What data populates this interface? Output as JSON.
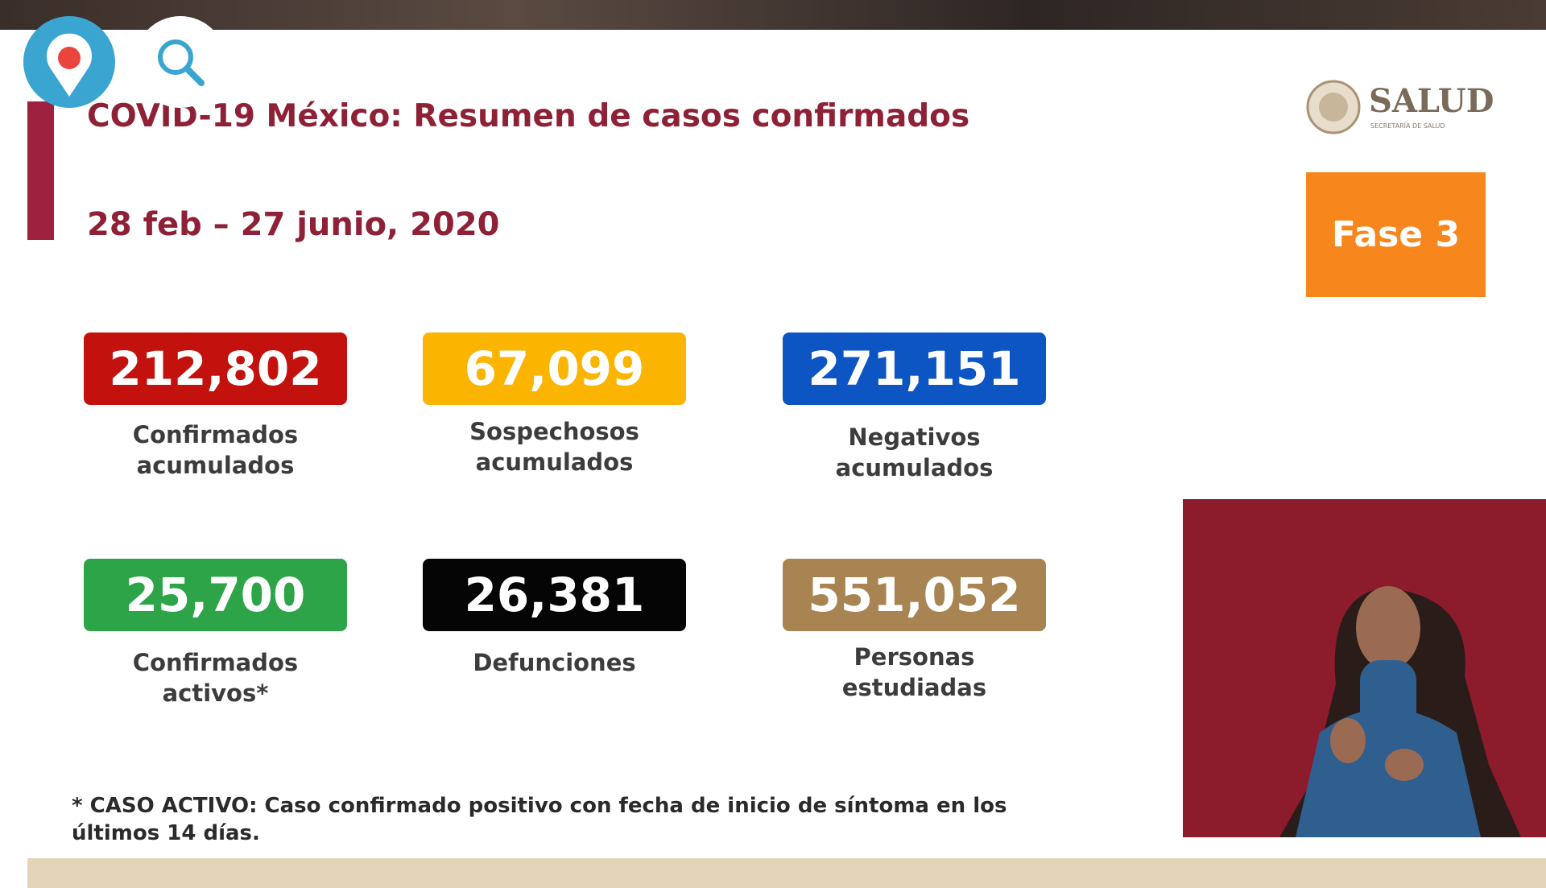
{
  "header": {
    "title": "COVID-19 México: Resumen de casos confirmados",
    "date_range": "28 feb – 27 junio, 2020",
    "logo": "SALUD",
    "logo_sub": "SECRETARÍA DE SALUD",
    "phase": "Fase 3"
  },
  "stats": [
    {
      "value": "212,802",
      "label": [
        "Confirmados",
        "acumulados"
      ],
      "color": "#c3120d"
    },
    {
      "value": "67,099",
      "label": [
        "Sospechosos",
        "acumulados"
      ],
      "color": "#fbb500"
    },
    {
      "value": "271,151",
      "label": [
        "Negativos",
        "acumulados"
      ],
      "color": "#0d55c3"
    },
    {
      "value": "25,700",
      "label": [
        "Confirmados",
        "activos*"
      ],
      "color": "#2ea449"
    },
    {
      "value": "26,381",
      "label": [
        "Defunciones"
      ],
      "color": "#050505"
    },
    {
      "value": "551,052",
      "label": [
        "Personas",
        "estudiadas"
      ],
      "color": "#a98453"
    }
  ],
  "footnote": [
    "* CASO ACTIVO: Caso confirmado positivo con fecha de inicio de síntoma en los",
    "últimos 14 días."
  ]
}
